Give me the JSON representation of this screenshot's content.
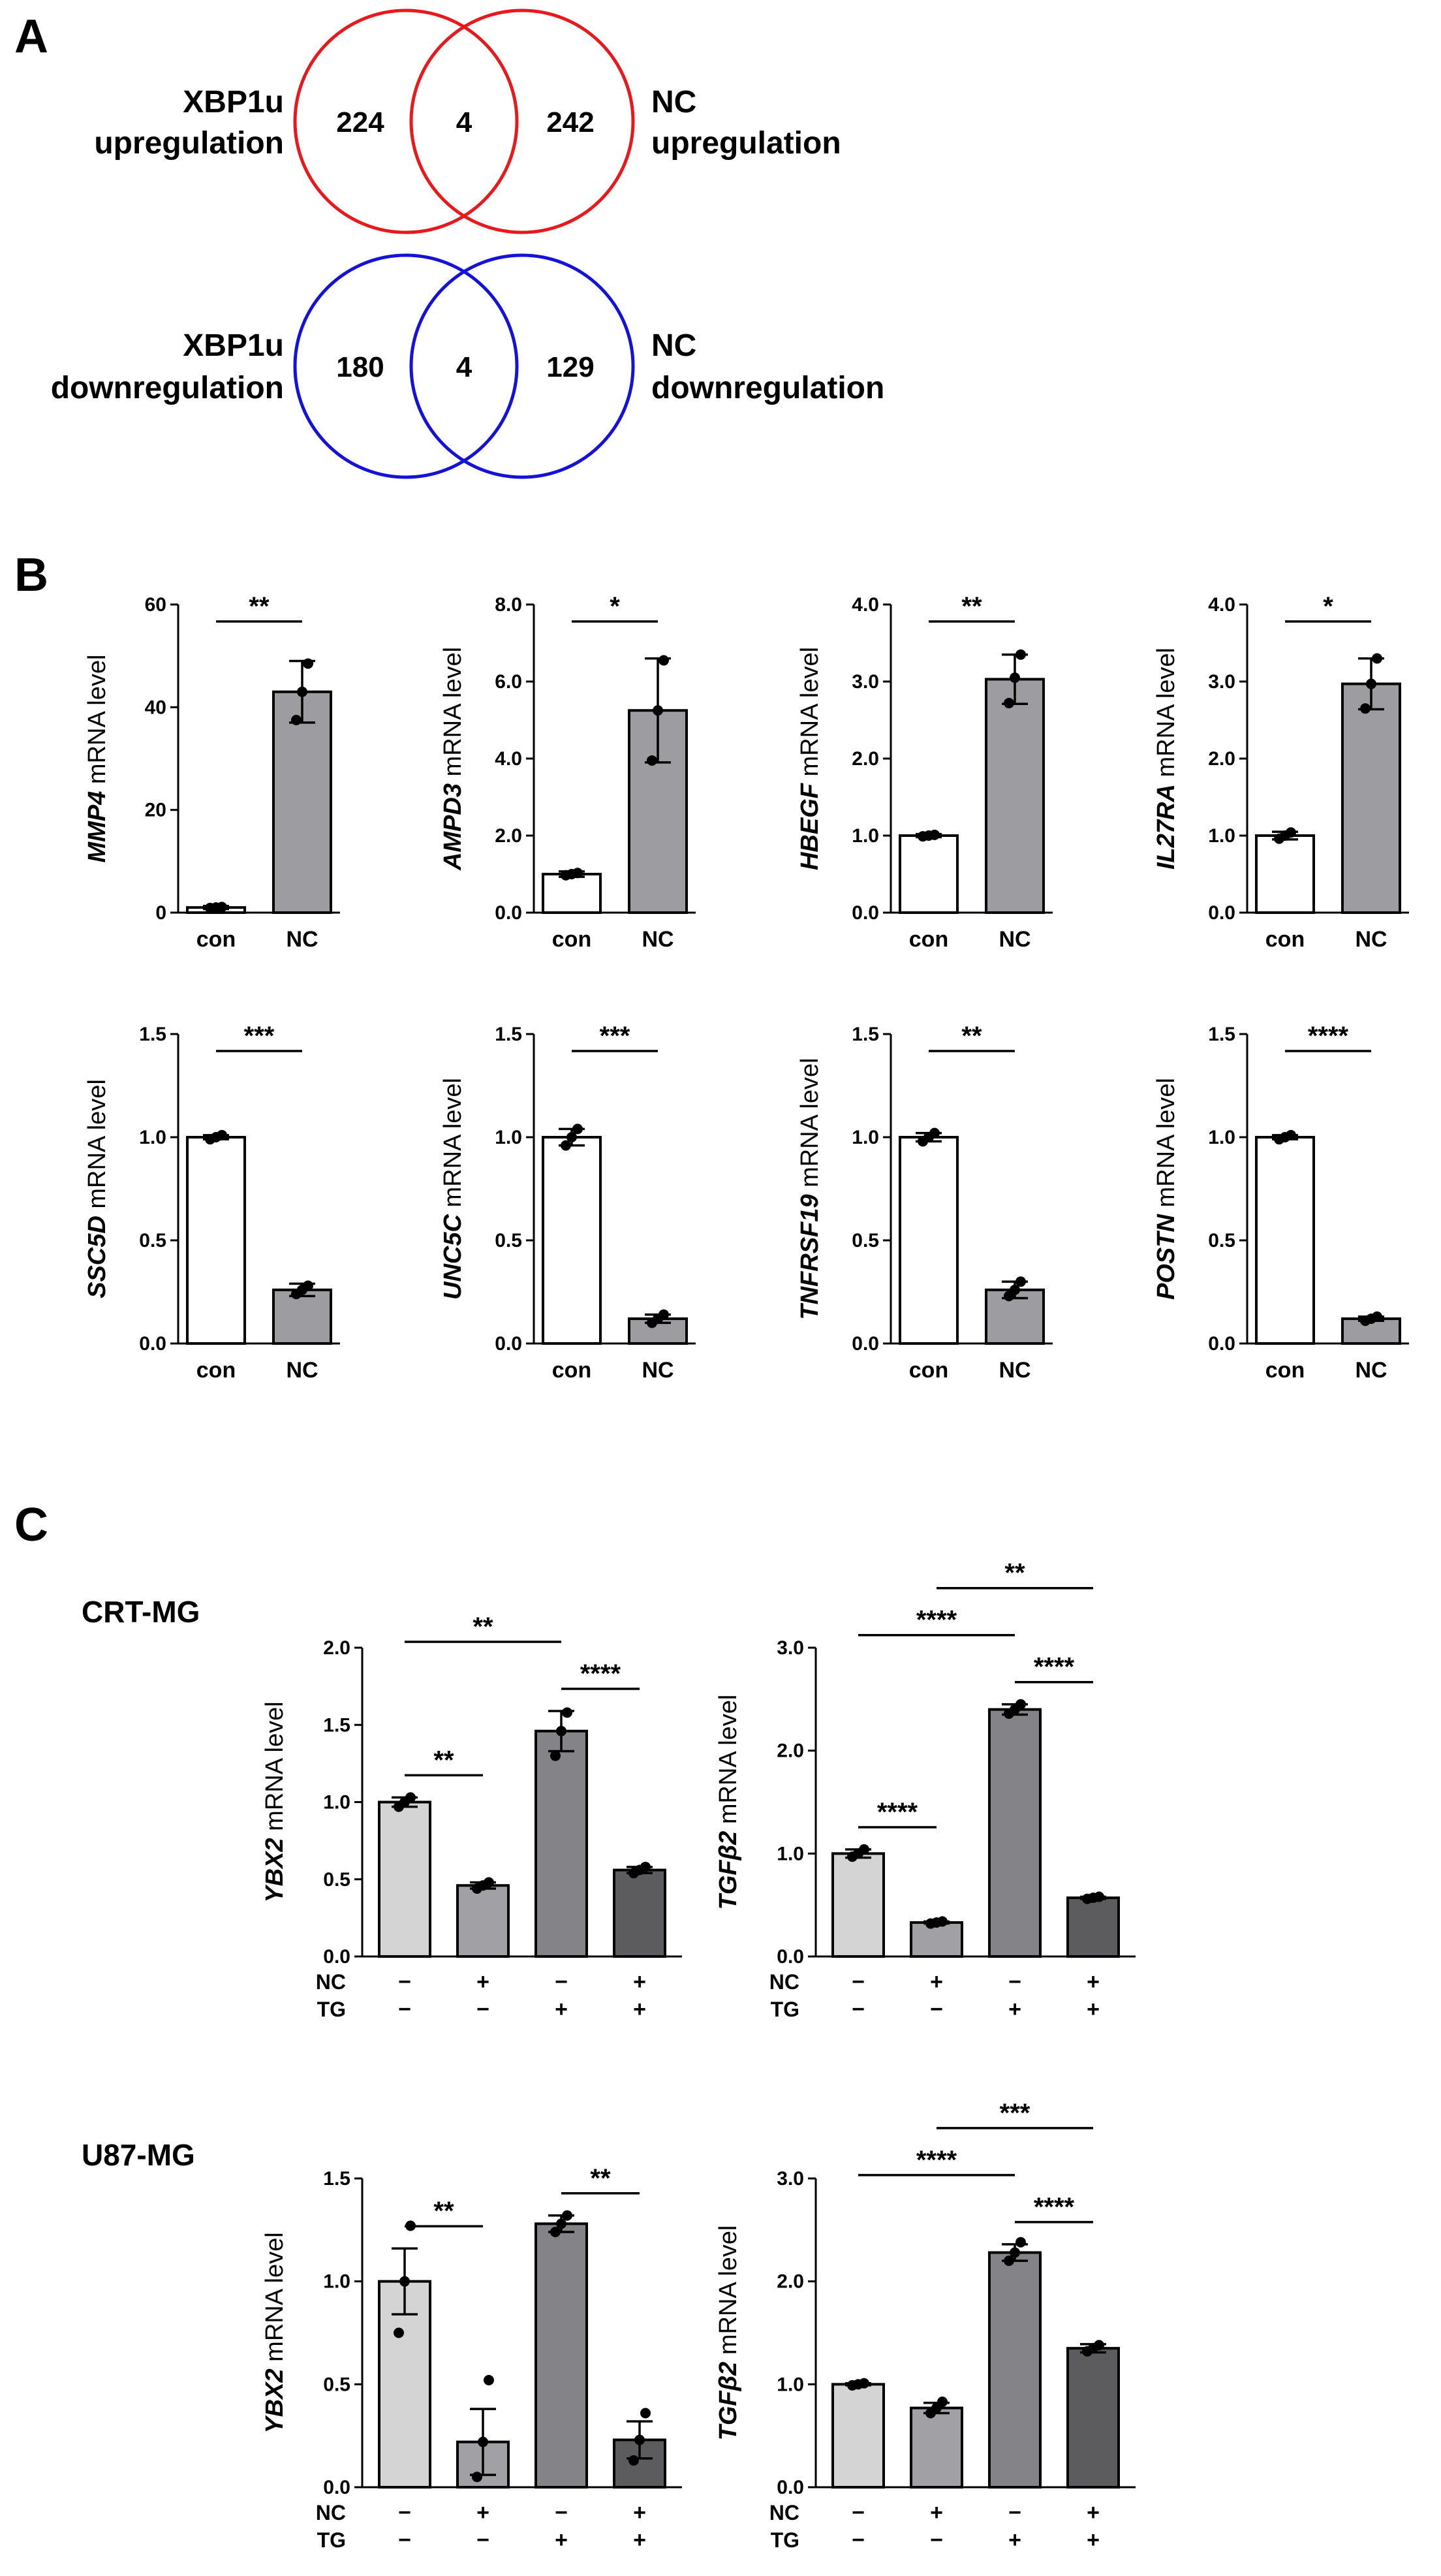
{
  "panels": {
    "A": "A",
    "B": "B",
    "C": "C"
  },
  "venn": [
    {
      "left_label": [
        "XBP1u",
        "upregulation"
      ],
      "right_label": [
        "NC",
        "upregulation"
      ],
      "left_only": "224",
      "overlap": "4",
      "right_only": "242",
      "color": "#e8191c"
    },
    {
      "left_label": [
        "XBP1u",
        "downregulation"
      ],
      "right_label": [
        "NC",
        "downregulation"
      ],
      "left_only": "180",
      "overlap": "4",
      "right_only": "129",
      "color": "#1411d8"
    }
  ],
  "colors": {
    "con": "#ffffff",
    "nc": "#9c9ca1",
    "c1": "#d4d4d4",
    "c2": "#a1a1a5",
    "c3": "#838388",
    "c4": "#5c5c5f"
  },
  "cell_lines": {
    "crt": "CRT-MG",
    "u87": "U87-MG"
  },
  "chart_data": [
    {
      "type": "bar",
      "panel": "B",
      "gene": "MMP4",
      "ylabel": " mRNA level",
      "categories": [
        "con",
        "NC"
      ],
      "values": [
        1.0,
        43.0
      ],
      "errors": [
        0.3,
        6.0
      ],
      "points": [
        [
          0.9,
          1.0,
          1.1
        ],
        [
          37.5,
          43,
          48.5
        ]
      ],
      "ylim": [
        0,
        60
      ],
      "yticks": [
        "0",
        "20",
        "40",
        "60"
      ],
      "sig": [
        {
          "from": 0,
          "to": 1,
          "label": "**"
        }
      ]
    },
    {
      "type": "bar",
      "panel": "B",
      "gene": "AMPD3",
      "ylabel": " mRNA level",
      "categories": [
        "con",
        "NC"
      ],
      "values": [
        1.0,
        5.25
      ],
      "errors": [
        0.07,
        1.35
      ],
      "points": [
        [
          0.97,
          1.0,
          1.03
        ],
        [
          3.95,
          5.25,
          6.55
        ]
      ],
      "ylim": [
        0,
        8
      ],
      "yticks": [
        "0.0",
        "2.0",
        "4.0",
        "6.0",
        "8.0"
      ],
      "sig": [
        {
          "from": 0,
          "to": 1,
          "label": "*"
        }
      ]
    },
    {
      "type": "bar",
      "panel": "B",
      "gene": "HBEGF",
      "ylabel": " mRNA level",
      "categories": [
        "con",
        "NC"
      ],
      "values": [
        1.0,
        3.03
      ],
      "errors": [
        0.02,
        0.32
      ],
      "points": [
        [
          0.99,
          1.0,
          1.01
        ],
        [
          2.72,
          3.05,
          3.35
        ]
      ],
      "ylim": [
        0,
        4
      ],
      "yticks": [
        "0.0",
        "1.0",
        "2.0",
        "3.0",
        "4.0"
      ],
      "sig": [
        {
          "from": 0,
          "to": 1,
          "label": "**"
        }
      ]
    },
    {
      "type": "bar",
      "panel": "B",
      "gene": "IL27RA",
      "ylabel": " mRNA level",
      "categories": [
        "con",
        "NC"
      ],
      "values": [
        1.0,
        2.97
      ],
      "errors": [
        0.05,
        0.33
      ],
      "points": [
        [
          0.96,
          1.0,
          1.04
        ],
        [
          2.65,
          2.97,
          3.3
        ]
      ],
      "ylim": [
        0,
        4
      ],
      "yticks": [
        "0.0",
        "1.0",
        "2.0",
        "3.0",
        "4.0"
      ],
      "sig": [
        {
          "from": 0,
          "to": 1,
          "label": "*"
        }
      ]
    },
    {
      "type": "bar",
      "panel": "B",
      "gene": "SSC5D",
      "ylabel": " mRNA level",
      "categories": [
        "con",
        "NC"
      ],
      "values": [
        1.0,
        0.26
      ],
      "errors": [
        0.01,
        0.03
      ],
      "points": [
        [
          0.99,
          1.0,
          1.01
        ],
        [
          0.24,
          0.26,
          0.28
        ]
      ],
      "ylim": [
        0,
        1.5
      ],
      "yticks": [
        "0.0",
        "0.5",
        "1.0",
        "1.5"
      ],
      "sig": [
        {
          "from": 0,
          "to": 1,
          "label": "***"
        }
      ]
    },
    {
      "type": "bar",
      "panel": "B",
      "gene": "UNC5C",
      "ylabel": " mRNA level",
      "categories": [
        "con",
        "NC"
      ],
      "values": [
        1.0,
        0.12
      ],
      "errors": [
        0.04,
        0.02
      ],
      "points": [
        [
          0.96,
          1.0,
          1.04
        ],
        [
          0.1,
          0.12,
          0.14
        ]
      ],
      "ylim": [
        0,
        1.5
      ],
      "yticks": [
        "0.0",
        "0.5",
        "1.0",
        "1.5"
      ],
      "sig": [
        {
          "from": 0,
          "to": 1,
          "label": "***"
        }
      ]
    },
    {
      "type": "bar",
      "panel": "B",
      "gene": "TNFRSF19",
      "ylabel": " mRNA level",
      "categories": [
        "con",
        "NC"
      ],
      "values": [
        1.0,
        0.26
      ],
      "errors": [
        0.02,
        0.04
      ],
      "points": [
        [
          0.98,
          1.0,
          1.02
        ],
        [
          0.23,
          0.26,
          0.3
        ]
      ],
      "ylim": [
        0,
        1.5
      ],
      "yticks": [
        "0.0",
        "0.5",
        "1.0",
        "1.5"
      ],
      "sig": [
        {
          "from": 0,
          "to": 1,
          "label": "**"
        }
      ]
    },
    {
      "type": "bar",
      "panel": "B",
      "gene": "POSTN",
      "ylabel": " mRNA level",
      "categories": [
        "con",
        "NC"
      ],
      "values": [
        1.0,
        0.12
      ],
      "errors": [
        0.01,
        0.01
      ],
      "points": [
        [
          0.99,
          1.0,
          1.01
        ],
        [
          0.11,
          0.12,
          0.13
        ]
      ],
      "ylim": [
        0,
        1.5
      ],
      "yticks": [
        "0.0",
        "0.5",
        "1.0",
        "1.5"
      ],
      "sig": [
        {
          "from": 0,
          "to": 1,
          "label": "****"
        }
      ]
    },
    {
      "type": "bar",
      "panel": "C",
      "cell_line": "CRT-MG",
      "gene": "YBX2",
      "ylabel": " mRNA level",
      "rows": [
        "NC",
        "TG"
      ],
      "conditions": [
        [
          "−",
          "−"
        ],
        [
          "+",
          "−"
        ],
        [
          "−",
          "+"
        ],
        [
          "+",
          "+"
        ]
      ],
      "values": [
        1.0,
        0.46,
        1.46,
        0.56
      ],
      "errors": [
        0.03,
        0.02,
        0.13,
        0.02
      ],
      "points": [
        [
          0.97,
          1.0,
          1.03
        ],
        [
          0.44,
          0.46,
          0.48
        ],
        [
          1.3,
          1.46,
          1.58
        ],
        [
          0.54,
          0.56,
          0.58
        ]
      ],
      "ylim": [
        0,
        2.0
      ],
      "yticks": [
        "0.0",
        "0.5",
        "1.0",
        "1.5",
        "2.0"
      ],
      "sig": [
        {
          "from": 0,
          "to": 1,
          "label": "**"
        },
        {
          "from": 2,
          "to": 3,
          "label": "****"
        },
        {
          "from": 0,
          "to": 2,
          "label": "**"
        }
      ]
    },
    {
      "type": "bar",
      "panel": "C",
      "cell_line": "CRT-MG",
      "gene": "TGFβ2",
      "ylabel": " mRNA level",
      "rows": [
        "NC",
        "TG"
      ],
      "conditions": [
        [
          "−",
          "−"
        ],
        [
          "+",
          "−"
        ],
        [
          "−",
          "+"
        ],
        [
          "+",
          "+"
        ]
      ],
      "values": [
        1.0,
        0.33,
        2.4,
        0.57
      ],
      "errors": [
        0.04,
        0.01,
        0.05,
        0.01
      ],
      "points": [
        [
          0.97,
          1.0,
          1.04
        ],
        [
          0.32,
          0.33,
          0.34
        ],
        [
          2.36,
          2.4,
          2.45
        ],
        [
          0.56,
          0.57,
          0.58
        ]
      ],
      "ylim": [
        0,
        3.0
      ],
      "yticks": [
        "0.0",
        "1.0",
        "2.0",
        "3.0"
      ],
      "sig": [
        {
          "from": 0,
          "to": 1,
          "label": "****"
        },
        {
          "from": 2,
          "to": 3,
          "label": "****"
        },
        {
          "from": 0,
          "to": 2,
          "label": "****"
        },
        {
          "from": 1,
          "to": 3,
          "label": "**"
        }
      ]
    },
    {
      "type": "bar",
      "panel": "C",
      "cell_line": "U87-MG",
      "gene": "YBX2",
      "ylabel": " mRNA level",
      "rows": [
        "NC",
        "TG"
      ],
      "conditions": [
        [
          "−",
          "−"
        ],
        [
          "+",
          "−"
        ],
        [
          "−",
          "+"
        ],
        [
          "+",
          "+"
        ]
      ],
      "values": [
        1.0,
        0.22,
        1.28,
        0.23
      ],
      "errors": [
        0.16,
        0.16,
        0.04,
        0.09
      ],
      "points": [
        [
          0.75,
          1.0,
          1.27
        ],
        [
          0.05,
          0.22,
          0.52
        ],
        [
          1.24,
          1.28,
          1.32
        ],
        [
          0.13,
          0.23,
          0.36
        ]
      ],
      "ylim": [
        0,
        1.5
      ],
      "yticks": [
        "0.0",
        "0.5",
        "1.0",
        "1.5"
      ],
      "sig": [
        {
          "from": 0,
          "to": 1,
          "label": "**"
        },
        {
          "from": 2,
          "to": 3,
          "label": "**"
        }
      ]
    },
    {
      "type": "bar",
      "panel": "C",
      "cell_line": "U87-MG",
      "gene": "TGFβ2",
      "ylabel": " mRNA level",
      "rows": [
        "NC",
        "TG"
      ],
      "conditions": [
        [
          "−",
          "−"
        ],
        [
          "+",
          "−"
        ],
        [
          "−",
          "+"
        ],
        [
          "+",
          "+"
        ]
      ],
      "values": [
        1.0,
        0.77,
        2.28,
        1.35
      ],
      "errors": [
        0.01,
        0.05,
        0.08,
        0.04
      ],
      "points": [
        [
          0.99,
          1.0,
          1.01
        ],
        [
          0.72,
          0.77,
          0.83
        ],
        [
          2.2,
          2.28,
          2.38
        ],
        [
          1.32,
          1.35,
          1.38
        ]
      ],
      "ylim": [
        0,
        3.0
      ],
      "yticks": [
        "0.0",
        "1.0",
        "2.0",
        "3.0"
      ],
      "sig": [
        {
          "from": 2,
          "to": 3,
          "label": "****"
        },
        {
          "from": 0,
          "to": 2,
          "label": "****"
        },
        {
          "from": 1,
          "to": 3,
          "label": "***"
        }
      ]
    }
  ]
}
